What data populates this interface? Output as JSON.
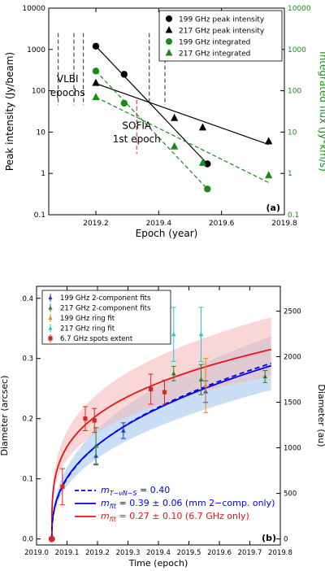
{
  "chart_data": [
    {
      "type": "scatter",
      "panel_label": "(a)",
      "xlabel": "Epoch (year)",
      "ylabel": "Peak intensity (Jy/beam)",
      "y2label": "Integrated flux (Jy*km/s)",
      "xlim": [
        2019.05,
        2019.8
      ],
      "ylim": [
        0.1,
        10000
      ],
      "y2lim": [
        0.1,
        10000
      ],
      "yscale": "log",
      "y2scale": "log",
      "xticks": [
        "2019.2",
        "2019.4",
        "2019.6",
        "2019.8"
      ],
      "yticks": [
        "0.1",
        "1",
        "10",
        "100",
        "1000",
        "10000"
      ],
      "y2ticks": [
        "0.1",
        "1",
        "10",
        "100",
        "1000",
        "10000"
      ],
      "legend_position": "top-right",
      "annotations": [
        {
          "text": "VLBI",
          "x": 2019.11,
          "y": 160
        },
        {
          "text": "epochs",
          "x": 2019.11,
          "y": 75
        },
        {
          "text": "SOFIA",
          "x": 2019.33,
          "y": 12
        },
        {
          "text": "1st epoch",
          "x": 2019.33,
          "y": 5.6
        }
      ],
      "vlbi_epochs": [
        2019.08,
        2019.13,
        2019.16,
        2019.37,
        2019.42
      ],
      "sofia_epoch": 2019.33,
      "series": [
        {
          "name": "199 GHz peak intensity",
          "marker": "circle",
          "color": "#000000",
          "x": [
            2019.2,
            2019.29,
            2019.555
          ],
          "y": [
            1200,
            250,
            1.7
          ],
          "fit_x": [
            2019.2,
            2019.555
          ],
          "fit_y": [
            1200,
            1.7
          ]
        },
        {
          "name": "217 GHz peak intensity",
          "marker": "triangle",
          "color": "#000000",
          "x": [
            2019.2,
            2019.45,
            2019.54,
            2019.75
          ],
          "y": [
            155,
            22,
            13,
            6
          ],
          "fit_x": [
            2019.2,
            2019.75
          ],
          "fit_y": [
            150,
            5
          ]
        },
        {
          "name": "199 GHz integrated",
          "marker": "circle",
          "color": "#1a8a1a",
          "x": [
            2019.2,
            2019.29,
            2019.555
          ],
          "y": [
            300,
            50,
            0.42
          ],
          "fit_x": [
            2019.2,
            2019.555
          ],
          "fit_y": [
            300,
            0.42
          ]
        },
        {
          "name": "217 GHz integrated",
          "marker": "triangle",
          "color": "#1a8a1a",
          "x": [
            2019.2,
            2019.45,
            2019.54,
            2019.75
          ],
          "y": [
            70,
            4.5,
            1.8,
            0.9
          ],
          "fit_x": [
            2019.2,
            2019.75
          ],
          "fit_y": [
            70,
            0.6
          ]
        }
      ]
    },
    {
      "type": "scatter",
      "panel_label": "(b)",
      "xlabel": "Time (epoch)",
      "ylabel": "Diameter (arcsec)",
      "y2label": "Diameter (au)",
      "xlim": [
        2019.0,
        2019.8
      ],
      "ylim": [
        -0.01,
        0.42
      ],
      "y2lim": [
        -66,
        2772
      ],
      "xticks": [
        "2019.0",
        "2019.1",
        "2019.2",
        "2019.3",
        "2019.4",
        "2019.5",
        "2019.6",
        "2019.7",
        "2019.8"
      ],
      "yticks": [
        "0.0",
        "0.1",
        "0.2",
        "0.3",
        "0.4"
      ],
      "y2ticks": [
        "0",
        "500",
        "1000",
        "1500",
        "2000",
        "2500"
      ],
      "legend_position": "top-left",
      "t0": 2019.05,
      "series": [
        {
          "name": "199 GHz 2-component fits",
          "marker": "triangle",
          "color": "#1f3fbf",
          "x": [
            2019.195,
            2019.285,
            2019.555
          ],
          "y": [
            0.138,
            0.18,
            0.245
          ],
          "err": [
            0.015,
            0.013,
            0.018
          ]
        },
        {
          "name": "217 GHz 2-component fits",
          "marker": "triangle",
          "color": "#2e7d32",
          "x": [
            2019.195,
            2019.45,
            2019.54,
            2019.75
          ],
          "y": [
            0.155,
            0.275,
            0.265,
            0.27
          ],
          "err": [
            0.03,
            0.012,
            0.025,
            0.01
          ]
        },
        {
          "name": "199 GHz ring fit",
          "marker": "triangle",
          "color": "#e08a1e",
          "x": [
            2019.555
          ],
          "y": [
            0.255
          ],
          "err": [
            0.045
          ]
        },
        {
          "name": "217 GHz ring fit",
          "marker": "triangle",
          "color": "#29c4d6",
          "x": [
            2019.45,
            2019.54
          ],
          "y": [
            0.34,
            0.34
          ],
          "err": [
            0.045,
            0.045
          ]
        },
        {
          "name": "6.7 GHz spots extent",
          "marker": "square",
          "color": "#d62728",
          "x": [
            2019.05,
            2019.085,
            2019.16,
            2019.19,
            2019.375,
            2019.42
          ],
          "y": [
            0.0,
            0.087,
            0.2,
            0.197,
            0.249,
            0.244
          ],
          "err": [
            0,
            0.03,
            0.02,
            0.02,
            0.025,
            0.02
          ]
        }
      ],
      "fits": [
        {
          "label": "m_{T-νN-S} = 0.40",
          "color": "#0000ee",
          "style": "dashed",
          "m": 0.4,
          "x_end": 2019.77,
          "y_end": 0.292
        },
        {
          "label": "m_{fit} = 0.39 ± 0.06 (mm 2−comp. only)",
          "color": "#0000ee",
          "style": "solid",
          "m": 0.39,
          "x_end": 2019.77,
          "y_end": 0.288,
          "band": "#9ec5ec"
        },
        {
          "label": "m_{fit} = 0.27 ± 0.10 (6.7 GHz only)",
          "color": "#ee1111",
          "style": "solid",
          "m": 0.27,
          "x_end": 2019.77,
          "y_end": 0.315,
          "band": "#f4b6b6"
        }
      ],
      "fit_legend_math": [
        {
          "lhs_sym": "m",
          "lhs_sub": "T−νN−S",
          "rhs": "= 0.40"
        },
        {
          "lhs_sym": "m",
          "lhs_sub": "fit",
          "rhs": "= 0.39 ± 0.06 (mm 2−comp. only)"
        },
        {
          "lhs_sym": "m",
          "lhs_sub": "fit",
          "rhs": "= 0.27 ± 0.10 (6.7 GHz only)"
        }
      ]
    }
  ]
}
